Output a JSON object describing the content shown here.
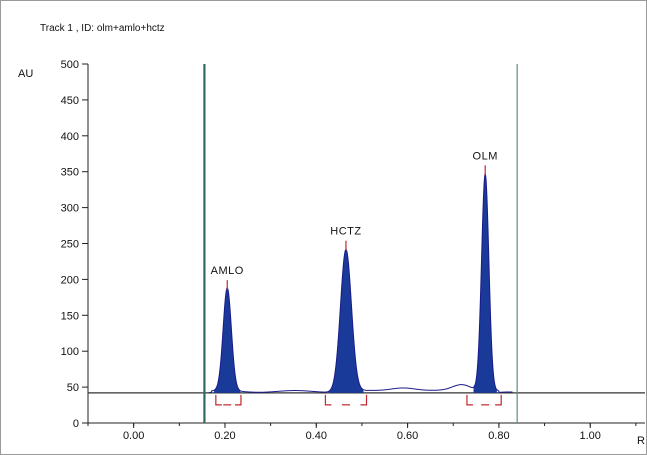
{
  "chart_data": {
    "type": "line",
    "title": "Track  1 , ID: olm+amlo+hctz",
    "ylabel": "AU",
    "xlabel": "R",
    "xlim": [
      -0.1,
      1.12
    ],
    "ylim": [
      0,
      500
    ],
    "yticks": [
      0,
      50,
      100,
      150,
      200,
      250,
      300,
      350,
      400,
      450,
      500
    ],
    "xticks": [
      "0.00",
      "0.20",
      "0.40",
      "0.60",
      "0.80",
      "1.00"
    ],
    "baseline": 42,
    "start_marker_x": 0.155,
    "end_marker_x": 0.84,
    "peaks": [
      {
        "name": "AMLO",
        "rf": 0.205,
        "height": 185,
        "sigma": 0.009,
        "integration": [
          0.18,
          0.235
        ]
      },
      {
        "name": "HCTZ",
        "rf": 0.465,
        "height": 240,
        "sigma": 0.012,
        "integration": [
          0.42,
          0.51
        ]
      },
      {
        "name": "OLM",
        "rf": 0.77,
        "height": 345,
        "sigma": 0.008,
        "integration": [
          0.73,
          0.805
        ]
      }
    ],
    "colors": {
      "peak_fill": "#1a3a9a",
      "curve": "#1a1a8a",
      "start_marker": "#2e6b5e",
      "end_marker": "#5e8e7e",
      "bracket": "#c0282d",
      "axis": "#222222"
    }
  }
}
